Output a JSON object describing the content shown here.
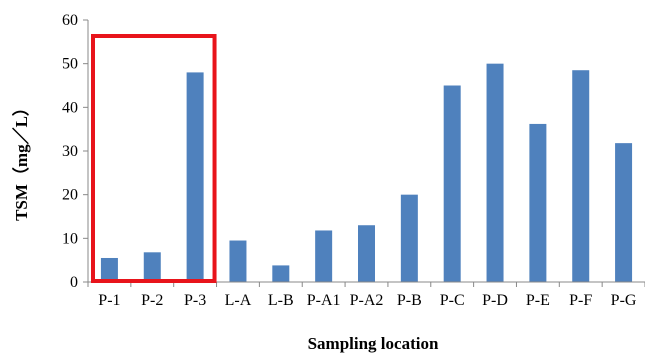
{
  "chart_data": {
    "type": "bar",
    "title": "",
    "xlabel": "Sampling location",
    "ylabel": "TSM（mg／L）",
    "ylim": [
      0,
      60
    ],
    "yticks": [
      0,
      10,
      20,
      30,
      40,
      50,
      60
    ],
    "grid": false,
    "legend": "none",
    "categories": [
      "P-1",
      "P-2",
      "P-3",
      "L-A",
      "L-B",
      "P-A1",
      "P-A2",
      "P-B",
      "P-C",
      "P-D",
      "P-E",
      "P-F",
      "P-G"
    ],
    "values": [
      5.5,
      6.8,
      48,
      9.5,
      3.8,
      11.8,
      13,
      20,
      45,
      50,
      36.2,
      48.5,
      31.8
    ],
    "bar_color": "#4f81bd",
    "highlight": {
      "categories": [
        "P-1",
        "P-2",
        "P-3"
      ],
      "color": "#e8141b"
    }
  }
}
